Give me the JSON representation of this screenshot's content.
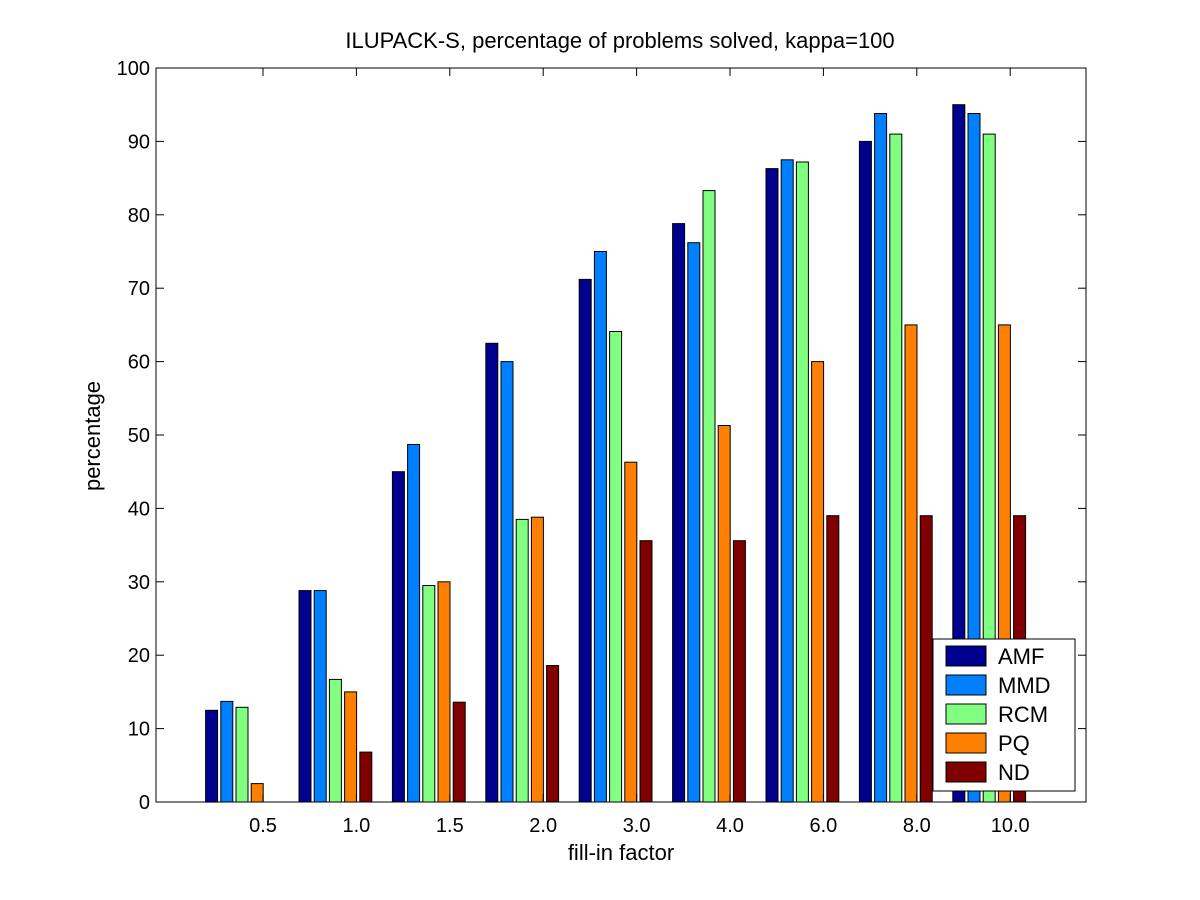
{
  "chart_data": {
    "type": "bar",
    "title": "ILUPACK-S, percentage of problems solved, kappa=100",
    "xlabel": "fill-in factor",
    "ylabel": "percentage",
    "ylim": [
      0,
      100
    ],
    "yticks": [
      0,
      10,
      20,
      30,
      40,
      50,
      60,
      70,
      80,
      90,
      100
    ],
    "categories": [
      "0.5",
      "1.0",
      "1.5",
      "2.0",
      "3.0",
      "4.0",
      "6.0",
      "8.0",
      "10.0"
    ],
    "grid": false,
    "legend_position": "bottom-right",
    "series": [
      {
        "name": "AMF",
        "color": "#00008f",
        "values": [
          12.5,
          28.8,
          45.0,
          62.5,
          71.2,
          78.8,
          86.3,
          90.0,
          95.0
        ]
      },
      {
        "name": "MMD",
        "color": "#0080ff",
        "values": [
          13.7,
          28.8,
          48.7,
          60.0,
          75.0,
          76.2,
          87.5,
          93.8,
          93.8
        ]
      },
      {
        "name": "RCM",
        "color": "#80ff80",
        "values": [
          12.9,
          16.7,
          29.5,
          38.5,
          64.1,
          83.3,
          87.2,
          91.0,
          91.0
        ]
      },
      {
        "name": "PQ",
        "color": "#ff8000",
        "values": [
          2.5,
          15.0,
          30.0,
          38.8,
          46.3,
          51.3,
          60.0,
          65.0,
          65.0
        ]
      },
      {
        "name": "ND",
        "color": "#800000",
        "values": [
          0,
          6.8,
          13.6,
          18.6,
          35.6,
          35.6,
          39.0,
          39.0,
          39.0
        ]
      }
    ]
  }
}
